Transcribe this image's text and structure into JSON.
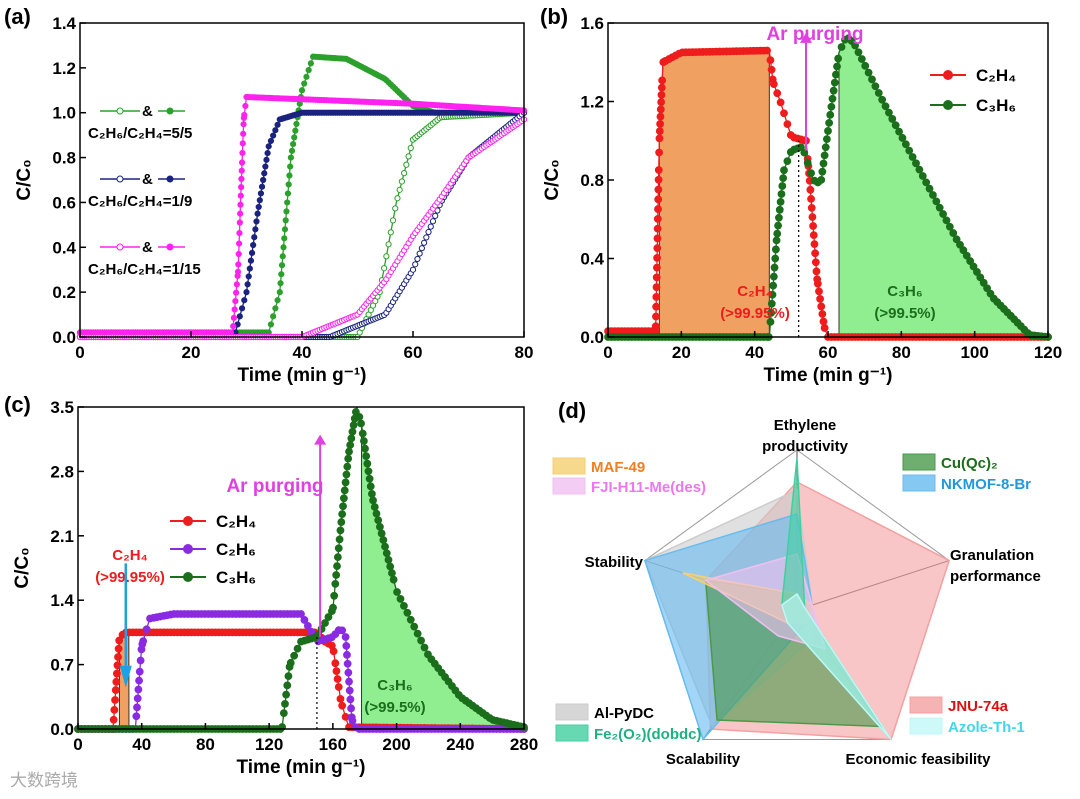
{
  "panels": {
    "a": "(a)",
    "b": "(b)",
    "c": "(c)",
    "d": "(d)"
  },
  "watermark": "大数跨境",
  "chart_data": [
    {
      "id": "a",
      "type": "line",
      "xlabel": "Time (min g⁻¹)",
      "ylabel": "C/C₀",
      "xlim": [
        0,
        80
      ],
      "ylim": [
        0,
        1.4
      ],
      "xticks": [
        0,
        20,
        40,
        60,
        80
      ],
      "yticks": [
        0,
        0.2,
        0.4,
        0.6,
        0.8,
        1.0,
        1.2,
        1.4
      ],
      "legend": [
        {
          "label": "C₂H₆/C₂H₄=5/5",
          "amp": "&",
          "color": "#2ca02c"
        },
        {
          "label": "C₂H₆/C₂H₄=1/9",
          "amp": "&",
          "color": "#1a237e"
        },
        {
          "label": "C₂H₆/C₂H₄=1/15",
          "amp": "&",
          "color": "#ff22ee"
        }
      ],
      "series": [
        {
          "color": "#2ca02c",
          "open": false,
          "points": [
            [
              0,
              0.02
            ],
            [
              34,
              0.02
            ],
            [
              36,
              0.2
            ],
            [
              38,
              0.8
            ],
            [
              40,
              1.1
            ],
            [
              42,
              1.25
            ],
            [
              48,
              1.24
            ],
            [
              55,
              1.15
            ],
            [
              60,
              1.03
            ],
            [
              64,
              1.0
            ],
            [
              80,
              1.0
            ]
          ]
        },
        {
          "color": "#2ca02c",
          "open": true,
          "points": [
            [
              0,
              0
            ],
            [
              50,
              0
            ],
            [
              54,
              0.2
            ],
            [
              57,
              0.6
            ],
            [
              60,
              0.88
            ],
            [
              65,
              0.98
            ],
            [
              80,
              1.0
            ]
          ]
        },
        {
          "color": "#1a237e",
          "open": false,
          "points": [
            [
              0,
              0.02
            ],
            [
              28,
              0.02
            ],
            [
              30,
              0.2
            ],
            [
              32,
              0.55
            ],
            [
              34,
              0.85
            ],
            [
              36,
              0.97
            ],
            [
              40,
              1.0
            ],
            [
              80,
              1.0
            ]
          ]
        },
        {
          "color": "#1a237e",
          "open": true,
          "points": [
            [
              0,
              0
            ],
            [
              45,
              0
            ],
            [
              55,
              0.1
            ],
            [
              60,
              0.3
            ],
            [
              65,
              0.6
            ],
            [
              70,
              0.8
            ],
            [
              80,
              1.0
            ]
          ]
        },
        {
          "color": "#ff22ee",
          "open": false,
          "points": [
            [
              0,
              0.02
            ],
            [
              27.5,
              0.02
            ],
            [
              28.5,
              0.3
            ],
            [
              29,
              0.65
            ],
            [
              29.5,
              0.97
            ],
            [
              30,
              1.07
            ],
            [
              40,
              1.06
            ],
            [
              60,
              1.04
            ],
            [
              80,
              1.01
            ]
          ]
        },
        {
          "color": "#ff22ee",
          "open": true,
          "points": [
            [
              0,
              0
            ],
            [
              40,
              0
            ],
            [
              50,
              0.1
            ],
            [
              55,
              0.25
            ],
            [
              60,
              0.45
            ],
            [
              65,
              0.62
            ],
            [
              70,
              0.8
            ],
            [
              80,
              0.97
            ]
          ]
        }
      ]
    },
    {
      "id": "b",
      "type": "line",
      "xlabel": "Time (min g⁻¹)",
      "ylabel": "C/C₀",
      "xlim": [
        0,
        120
      ],
      "ylim": [
        0,
        1.6
      ],
      "xticks": [
        0,
        20,
        40,
        60,
        80,
        100,
        120
      ],
      "yticks": [
        0,
        0.4,
        0.8,
        1.2,
        1.6
      ],
      "series": [
        {
          "name": "C₂H₄",
          "color": "#ee1c1c",
          "points": [
            [
              0,
              0.03
            ],
            [
              13,
              0.03
            ],
            [
              14,
              1.0
            ],
            [
              15,
              1.4
            ],
            [
              20,
              1.45
            ],
            [
              44,
              1.46
            ],
            [
              45,
              1.3
            ],
            [
              47,
              1.2
            ],
            [
              50,
              1.02
            ],
            [
              54,
              1.0
            ],
            [
              55,
              0.8
            ],
            [
              57,
              0.3
            ],
            [
              59,
              0.05
            ],
            [
              60,
              0
            ],
            [
              120,
              0
            ]
          ]
        },
        {
          "name": "C₃H₆",
          "color": "#1b6e1b",
          "points": [
            [
              0,
              0
            ],
            [
              44,
              0
            ],
            [
              46,
              0.5
            ],
            [
              48,
              0.85
            ],
            [
              50,
              0.95
            ],
            [
              53,
              0.97
            ],
            [
              56,
              0.8
            ],
            [
              58,
              0.78
            ],
            [
              60,
              1.05
            ],
            [
              63,
              1.45
            ],
            [
              65,
              1.53
            ],
            [
              67,
              1.5
            ],
            [
              75,
              1.2
            ],
            [
              85,
              0.85
            ],
            [
              95,
              0.5
            ],
            [
              105,
              0.2
            ],
            [
              115,
              0.01
            ],
            [
              120,
              0
            ]
          ]
        }
      ],
      "fills": [
        {
          "series": 0,
          "from": 14,
          "to": 44,
          "color": "#f0a060"
        },
        {
          "series": 1,
          "from": 63,
          "to": 115,
          "color": "#90ee90"
        }
      ],
      "purge_x": 52,
      "annotations": {
        "purge": "Ar purging",
        "c2h4": "C₂H₄",
        "c2h4_purity": "(>99.95%)",
        "c3h6": "C₃H₆",
        "c3h6_purity": "(>99.5%)"
      }
    },
    {
      "id": "c",
      "type": "line",
      "xlabel": "Time (min g⁻¹)",
      "ylabel": "C/C₀",
      "xlim": [
        0,
        280
      ],
      "ylim": [
        0,
        3.5
      ],
      "xticks": [
        0,
        40,
        80,
        120,
        160,
        200,
        240,
        280
      ],
      "yticks": [
        0.0,
        0.7,
        1.4,
        2.1,
        2.8,
        3.5
      ],
      "series": [
        {
          "name": "C₂H₄",
          "color": "#ee1c1c",
          "points": [
            [
              0,
              0
            ],
            [
              22,
              0
            ],
            [
              26,
              1.0
            ],
            [
              30,
              1.05
            ],
            [
              150,
              1.05
            ],
            [
              155,
              0.95
            ],
            [
              160,
              0.9
            ],
            [
              165,
              0.3
            ],
            [
              170,
              0.02
            ],
            [
              280,
              0
            ]
          ]
        },
        {
          "name": "C₂H₆",
          "color": "#8a2be2",
          "points": [
            [
              0,
              0
            ],
            [
              36,
              0
            ],
            [
              40,
              0.9
            ],
            [
              45,
              1.2
            ],
            [
              60,
              1.25
            ],
            [
              140,
              1.25
            ],
            [
              145,
              1.1
            ],
            [
              150,
              0.95
            ],
            [
              160,
              1.0
            ],
            [
              165,
              1.1
            ],
            [
              168,
              1.0
            ],
            [
              172,
              0.1
            ],
            [
              175,
              0
            ],
            [
              280,
              0
            ]
          ]
        },
        {
          "name": "C₃H₆",
          "color": "#1b6e1b",
          "points": [
            [
              0,
              0
            ],
            [
              128,
              0
            ],
            [
              133,
              0.7
            ],
            [
              140,
              0.95
            ],
            [
              150,
              1.0
            ],
            [
              160,
              1.3
            ],
            [
              165,
              2.2
            ],
            [
              170,
              3.0
            ],
            [
              175,
              3.5
            ],
            [
              178,
              3.3
            ],
            [
              185,
              2.5
            ],
            [
              200,
              1.5
            ],
            [
              220,
              0.8
            ],
            [
              240,
              0.35
            ],
            [
              260,
              0.1
            ],
            [
              280,
              0.02
            ]
          ]
        }
      ],
      "fills": [
        {
          "series": 0,
          "from": 26,
          "to": 32,
          "color": "#f0a060"
        },
        {
          "series": 2,
          "from": 178,
          "to": 280,
          "color": "#90ee90"
        }
      ],
      "purge_x": 150,
      "annotations": {
        "purge": "Ar purging",
        "c2h4": "C₂H₄",
        "c2h4_purity": "(>99.95%)",
        "c3h6": "C₃H₆",
        "c3h6_purity": "(>99.5%)"
      }
    },
    {
      "id": "d",
      "type": "radar",
      "axes": [
        "Ethylene productivity",
        "Granulation performance",
        "Economic  feasibility",
        "Scalability",
        "Stability"
      ],
      "axis_lines": [
        [
          "Ethylene",
          "productivity"
        ],
        [
          "Granulation",
          "performance"
        ],
        [
          "Economic  feasibility"
        ],
        [
          "Scalability"
        ],
        [
          "Stability"
        ]
      ],
      "range": [
        0,
        1
      ],
      "series": [
        {
          "name": "JNU-74a",
          "color": "#f4a0a0",
          "text": "#e01010",
          "values": [
            0.8,
            1.0,
            1.0,
            0.92,
            0.6
          ]
        },
        {
          "name": "Al-PyDC",
          "color": "#cccccc",
          "text": "#000000",
          "values": [
            0.75,
            0.1,
            0.2,
            0.9,
            1.0
          ]
        },
        {
          "name": "NKMOF-8-Br",
          "color": "#66bbf0",
          "text": "#2299dd",
          "values": [
            0.6,
            0.1,
            0.1,
            1.0,
            1.0
          ]
        },
        {
          "name": "Cu(Qc)₂",
          "color": "#4a9a4a",
          "text": "#1a6e1a",
          "values": [
            0.1,
            0.05,
            0.9,
            0.85,
            0.6
          ]
        },
        {
          "name": "MAF-49",
          "color": "#f5d070",
          "text": "#f08020",
          "values": [
            0.1,
            0.1,
            0.1,
            0.1,
            0.75
          ]
        },
        {
          "name": "FJI-H11-Me(des)",
          "color": "#f0c0f0",
          "text": "#ee77ee",
          "values": [
            0.35,
            0.1,
            0.3,
            0.2,
            0.6
          ]
        },
        {
          "name": "Fe₂(O₂)(dobdc)",
          "color": "#40d0a0",
          "text": "#20b080",
          "values": [
            0.95,
            0.05,
            1.0,
            0.1,
            0.1
          ]
        },
        {
          "name": "Azole-Th-1",
          "color": "#c0f8f8",
          "text": "#40d8e8",
          "values": [
            0.1,
            0.05,
            1.0,
            0.1,
            0.1
          ]
        }
      ]
    }
  ]
}
